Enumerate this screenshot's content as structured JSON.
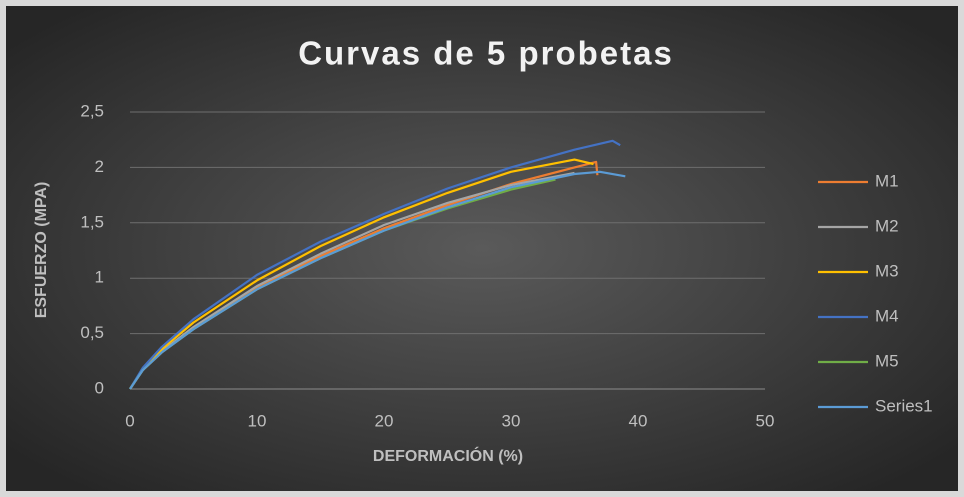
{
  "chart_data": {
    "type": "line",
    "title": "Curvas de 5 probetas",
    "xlabel": "DEFORMACIÓN (%)",
    "ylabel": "ESFUERZO (MPA)",
    "xlim": [
      0,
      50
    ],
    "xticks": [
      0,
      10,
      20,
      30,
      40,
      50
    ],
    "ylim": [
      0,
      2.5
    ],
    "yticks": [
      0,
      {
        "value": 0.5,
        "label": "0,5"
      },
      1,
      {
        "value": 1.5,
        "label": "1,5"
      },
      2,
      {
        "value": 2.5,
        "label": "2,5"
      }
    ],
    "grid": true,
    "legend": "right",
    "series": [
      {
        "name": "M1",
        "color": "#ed7d31",
        "x": [
          0,
          1,
          2.5,
          5,
          10,
          15,
          20,
          25,
          30,
          35,
          36.7,
          36.8
        ],
        "values": [
          0,
          0.17,
          0.33,
          0.55,
          0.92,
          1.2,
          1.45,
          1.66,
          1.85,
          2.0,
          2.05,
          1.93
        ]
      },
      {
        "name": "M2",
        "color": "#a5a5a5",
        "x": [
          0,
          1,
          2.5,
          5,
          10,
          15,
          20,
          25,
          30,
          35
        ],
        "values": [
          0,
          0.17,
          0.34,
          0.56,
          0.93,
          1.22,
          1.48,
          1.68,
          1.84,
          1.95
        ]
      },
      {
        "name": "M3",
        "color": "#ffc000",
        "x": [
          0,
          1,
          2.5,
          5,
          10,
          15,
          20,
          25,
          30,
          35,
          36.5
        ],
        "values": [
          0,
          0.18,
          0.36,
          0.6,
          0.98,
          1.29,
          1.55,
          1.77,
          1.96,
          2.07,
          2.03
        ]
      },
      {
        "name": "M4",
        "color": "#4472c4",
        "x": [
          0,
          1,
          2.5,
          5,
          10,
          15,
          20,
          25,
          30,
          35,
          38,
          38.6
        ],
        "values": [
          0,
          0.19,
          0.38,
          0.63,
          1.03,
          1.33,
          1.58,
          1.81,
          2.0,
          2.16,
          2.24,
          2.2
        ]
      },
      {
        "name": "M5",
        "color": "#70ad47",
        "x": [
          0,
          1,
          2.5,
          5,
          10,
          15,
          20,
          25,
          30,
          33.5
        ],
        "values": [
          0,
          0.17,
          0.33,
          0.54,
          0.9,
          1.18,
          1.43,
          1.63,
          1.8,
          1.89
        ]
      },
      {
        "name": "Series1",
        "color": "#5b9bd5",
        "x": [
          0,
          1,
          2.5,
          5,
          10,
          15,
          20,
          25,
          30,
          35,
          37,
          39
        ],
        "values": [
          0,
          0.17,
          0.33,
          0.54,
          0.9,
          1.18,
          1.43,
          1.64,
          1.82,
          1.94,
          1.96,
          1.92
        ]
      }
    ]
  }
}
